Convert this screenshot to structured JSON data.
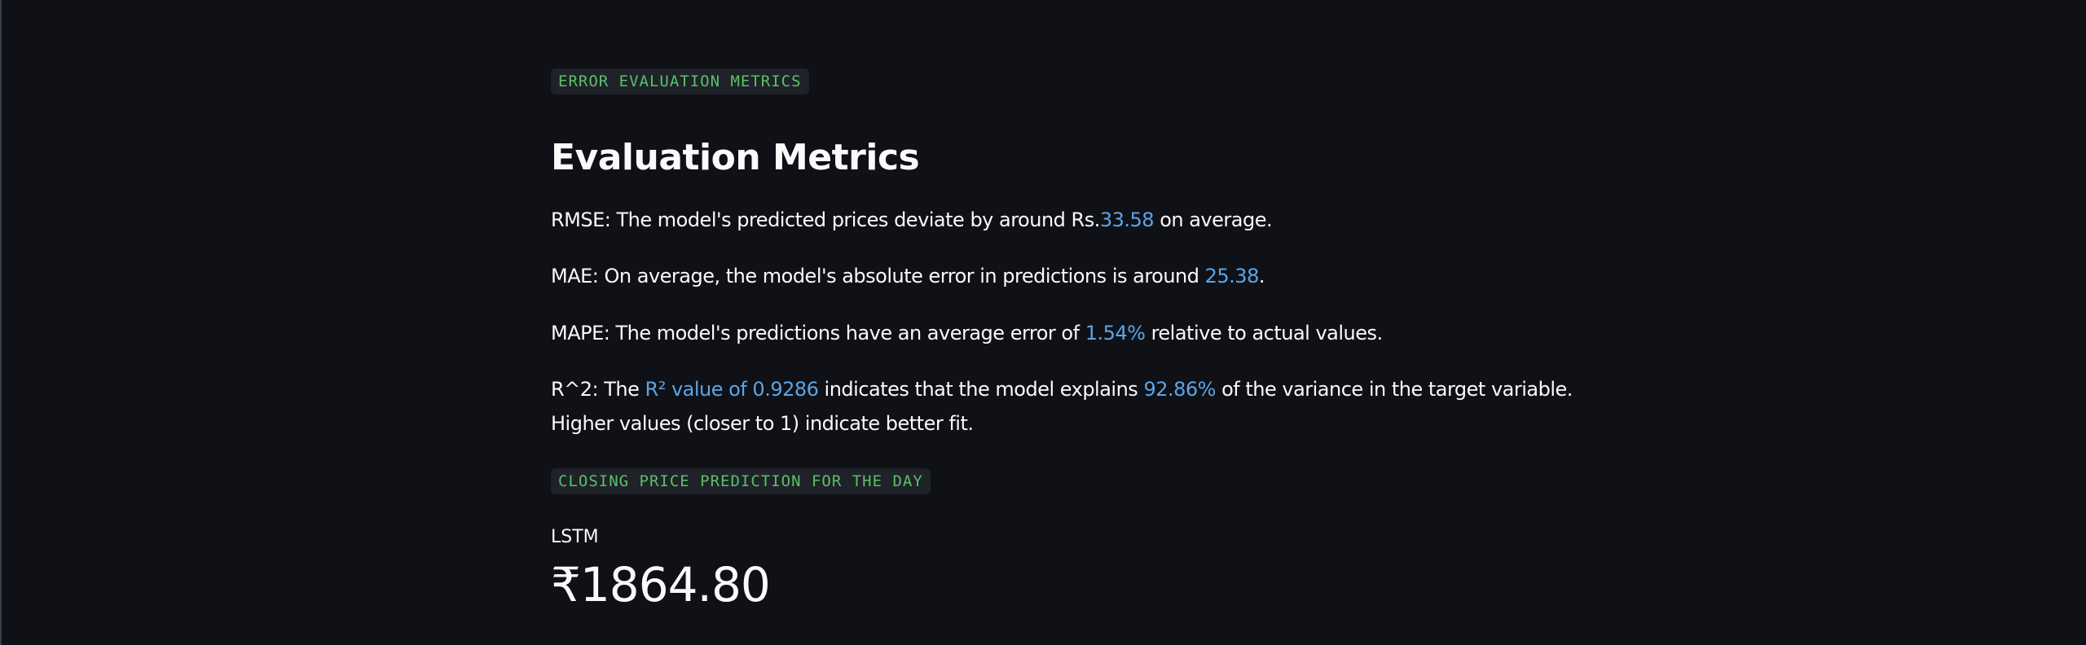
{
  "sections": {
    "error_tag": "ERROR EVALUATION METRICS",
    "closing_tag": "CLOSING PRICE PREDICTION FOR THE DAY"
  },
  "evaluation": {
    "title": "Evaluation Metrics",
    "rmse": {
      "prefix": "RMSE: The model's predicted prices deviate by around Rs.",
      "value": "33.58",
      "suffix": " on average."
    },
    "mae": {
      "prefix": "MAE: On average, the model's absolute error in predictions is around ",
      "value": "25.38",
      "suffix": "."
    },
    "mape": {
      "prefix": "MAPE: The model's predictions have an average error of ",
      "value": "1.54%",
      "suffix": " relative to actual values."
    },
    "r2": {
      "prefix": "R^2: The ",
      "value": "R² value of 0.9286",
      "middle": " indicates that the model explains ",
      "percent": "92.86%",
      "suffix": " of the variance in the target variable.",
      "line2": "Higher values (closer to 1) indicate better fit."
    }
  },
  "prediction": {
    "label": "LSTM",
    "value": "₹1864.80"
  },
  "colors": {
    "background": "#0f1116",
    "text": "#fafafa",
    "highlight": "#5ca4e6",
    "code_text": "#5cbf6a",
    "code_bg": "#1f2228"
  }
}
